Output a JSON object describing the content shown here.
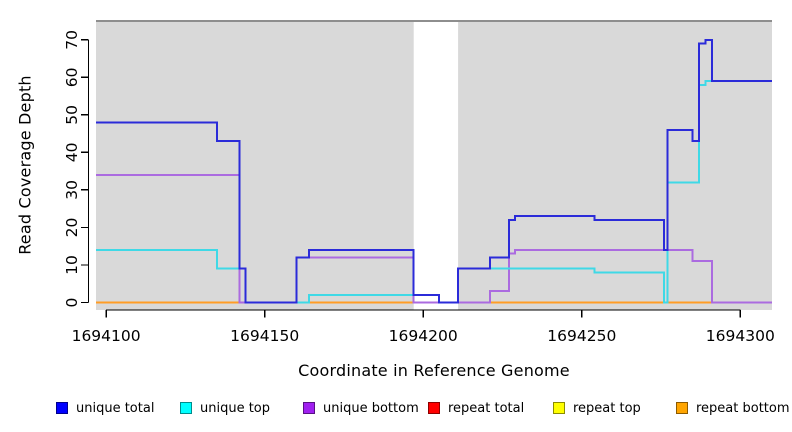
{
  "axes": {
    "x_title": "Coordinate in Reference Genome",
    "y_title": "Read Coverage Depth"
  },
  "legend": {
    "items": [
      {
        "label": "unique total",
        "color": "#0000ff"
      },
      {
        "label": "unique top",
        "color": "#00ffff"
      },
      {
        "label": "unique bottom",
        "color": "#a020f0"
      },
      {
        "label": "repeat total",
        "color": "#ff0000"
      },
      {
        "label": "repeat top",
        "color": "#ffff00"
      },
      {
        "label": "repeat bottom",
        "color": "#ffa500"
      }
    ]
  },
  "chart_data": {
    "type": "line",
    "step": true,
    "title": "",
    "xlabel": "Coordinate in Reference Genome",
    "ylabel": "Read Coverage Depth",
    "xlim": [
      1694096.8,
      1694310
    ],
    "ylim": [
      -2,
      75.3
    ],
    "x_ticks": [
      1694100,
      1694150,
      1694200,
      1694250,
      1694300
    ],
    "y_ticks": [
      0,
      10,
      20,
      30,
      40,
      50,
      60,
      70
    ],
    "grid": false,
    "legend_position": "bottom",
    "plot_bg": "#d9d9d9",
    "border_color": "#8e8e8e",
    "axis_color": "#000000",
    "mask_region": {
      "x0": 1694197,
      "x1": 1694211,
      "color": "#ffffff"
    },
    "series": [
      {
        "name": "repeat total",
        "color": "#dd0000",
        "points": [
          [
            1694096.8,
            0
          ],
          [
            1694310,
            0
          ]
        ]
      },
      {
        "name": "repeat top",
        "color": "#ffff00",
        "points": [
          [
            1694096.8,
            0
          ],
          [
            1694310,
            0
          ]
        ]
      },
      {
        "name": "repeat bottom",
        "color": "#ff9d26",
        "points": [
          [
            1694096.8,
            0
          ],
          [
            1694310,
            0
          ]
        ]
      },
      {
        "name": "unique bottom",
        "color": "#ab6be0",
        "points": [
          [
            1694096.8,
            34
          ],
          [
            1694142,
            34
          ],
          [
            1694142,
            0
          ],
          [
            1694160,
            0
          ],
          [
            1694160,
            12
          ],
          [
            1694197,
            12
          ],
          [
            1694197,
            0
          ],
          [
            1694221,
            0
          ],
          [
            1694221,
            3
          ],
          [
            1694227,
            3
          ],
          [
            1694227,
            13
          ],
          [
            1694229,
            13
          ],
          [
            1694229,
            14
          ],
          [
            1694285,
            14
          ],
          [
            1694285,
            11
          ],
          [
            1694291,
            11
          ],
          [
            1694291,
            0
          ],
          [
            1694310,
            0
          ]
        ]
      },
      {
        "name": "unique top",
        "color": "#3fd9e6",
        "points": [
          [
            1694096.8,
            14
          ],
          [
            1694135,
            14
          ],
          [
            1694135,
            9
          ],
          [
            1694144,
            9
          ],
          [
            1694144,
            0
          ],
          [
            1694164,
            0
          ],
          [
            1694164,
            2
          ],
          [
            1694205,
            2
          ],
          [
            1694205,
            0
          ],
          [
            1694211,
            0
          ],
          [
            1694211,
            9
          ],
          [
            1694254,
            9
          ],
          [
            1694254,
            8
          ],
          [
            1694276,
            8
          ],
          [
            1694276,
            0
          ],
          [
            1694277,
            0
          ],
          [
            1694277,
            32
          ],
          [
            1694287,
            32
          ],
          [
            1694287,
            58
          ],
          [
            1694289,
            58
          ],
          [
            1694289,
            59
          ],
          [
            1694310,
            59
          ]
        ]
      },
      {
        "name": "unique total",
        "color": "#2b2bd9",
        "points": [
          [
            1694096.8,
            48
          ],
          [
            1694135,
            48
          ],
          [
            1694135,
            43
          ],
          [
            1694142,
            43
          ],
          [
            1694142,
            9
          ],
          [
            1694144,
            9
          ],
          [
            1694144,
            0
          ],
          [
            1694160,
            0
          ],
          [
            1694160,
            12
          ],
          [
            1694164,
            12
          ],
          [
            1694164,
            14
          ],
          [
            1694197,
            14
          ],
          [
            1694197,
            2
          ],
          [
            1694205,
            2
          ],
          [
            1694205,
            0
          ],
          [
            1694211,
            0
          ],
          [
            1694211,
            9
          ],
          [
            1694221,
            9
          ],
          [
            1694221,
            12
          ],
          [
            1694227,
            12
          ],
          [
            1694227,
            22
          ],
          [
            1694229,
            22
          ],
          [
            1694229,
            23
          ],
          [
            1694254,
            23
          ],
          [
            1694254,
            22
          ],
          [
            1694276,
            22
          ],
          [
            1694276,
            14
          ],
          [
            1694277,
            14
          ],
          [
            1694277,
            46
          ],
          [
            1694285,
            46
          ],
          [
            1694285,
            43
          ],
          [
            1694287,
            43
          ],
          [
            1694287,
            69
          ],
          [
            1694289,
            69
          ],
          [
            1694289,
            70
          ],
          [
            1694291,
            70
          ],
          [
            1694291,
            59
          ],
          [
            1694310,
            59
          ]
        ]
      }
    ]
  }
}
